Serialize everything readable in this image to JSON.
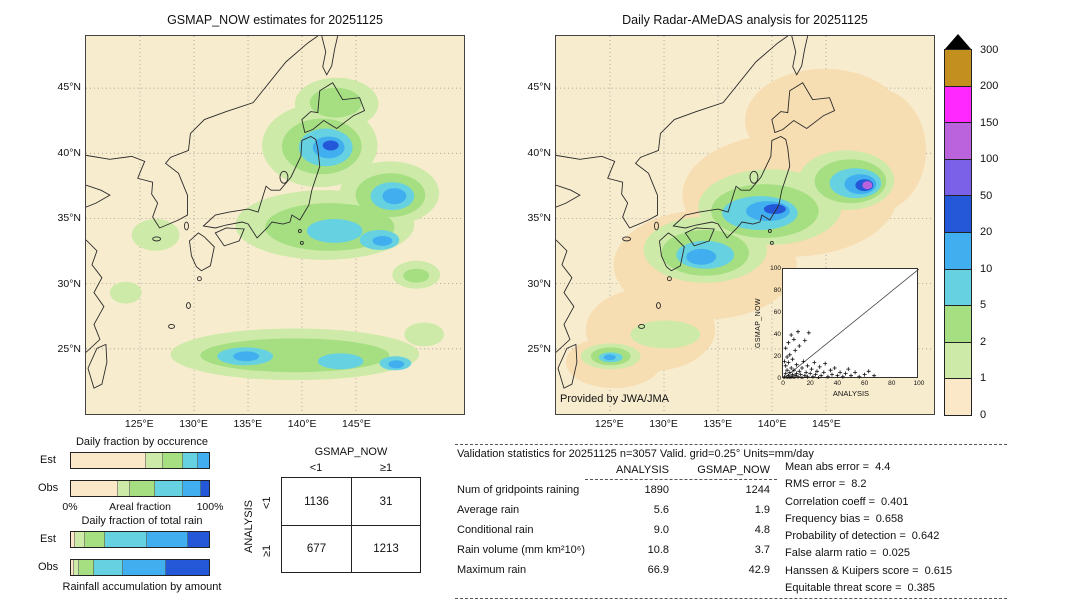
{
  "chart_data": [
    {
      "type": "map",
      "title": "GSMAP_NOW estimates for 20251125",
      "units": "mm/day",
      "lon_range": [
        120,
        155
      ],
      "lat_range": [
        20,
        49
      ],
      "x_ticks": [
        {
          "lon": 125,
          "label": "125°E"
        },
        {
          "lon": 130,
          "label": "130°E"
        },
        {
          "lon": 135,
          "label": "135°E"
        },
        {
          "lon": 140,
          "label": "140°E"
        },
        {
          "lon": 145,
          "label": "145°E"
        }
      ],
      "y_ticks": [
        {
          "lat": 25,
          "label": "25°N"
        },
        {
          "lat": 30,
          "label": "30°N"
        },
        {
          "lat": 35,
          "label": "35°N"
        },
        {
          "lat": 40,
          "label": "40°N"
        },
        {
          "lat": 45,
          "label": "45°N"
        }
      ]
    },
    {
      "type": "map",
      "title": "Daily Radar-AMeDAS analysis for 20251125",
      "credit": "Provided by JWA/JMA",
      "units": "mm/day",
      "lon_range": [
        120,
        155
      ],
      "lat_range": [
        20,
        49
      ],
      "x_ticks": [
        {
          "lon": 125,
          "label": "125°E"
        },
        {
          "lon": 130,
          "label": "130°E"
        },
        {
          "lon": 135,
          "label": "135°E"
        },
        {
          "lon": 140,
          "label": "140°E"
        },
        {
          "lon": 145,
          "label": "145°E"
        }
      ],
      "y_ticks": [
        {
          "lat": 25,
          "label": "25°N"
        },
        {
          "lat": 30,
          "label": "30°N"
        },
        {
          "lat": 35,
          "label": "35°N"
        },
        {
          "lat": 40,
          "label": "40°N"
        },
        {
          "lat": 45,
          "label": "45°N"
        }
      ],
      "inset_scatter": {
        "type": "scatter",
        "xlabel": "ANALYSIS",
        "ylabel": "GSMAP_NOW",
        "xlim": [
          0,
          100
        ],
        "ylim": [
          0,
          100
        ],
        "x_ticks": [
          0,
          20,
          40,
          60,
          80,
          100
        ],
        "y_ticks": [
          0,
          20,
          40,
          60,
          80,
          100
        ],
        "marker": "+",
        "points": [
          [
            1,
            2
          ],
          [
            2,
            5
          ],
          [
            2,
            12
          ],
          [
            3,
            1
          ],
          [
            3,
            8
          ],
          [
            4,
            15
          ],
          [
            4,
            3
          ],
          [
            5,
            1
          ],
          [
            5,
            6
          ],
          [
            5,
            22
          ],
          [
            6,
            10
          ],
          [
            6,
            2
          ],
          [
            7,
            18
          ],
          [
            7,
            4
          ],
          [
            8,
            1
          ],
          [
            8,
            8
          ],
          [
            9,
            26
          ],
          [
            9,
            3
          ],
          [
            10,
            5
          ],
          [
            10,
            13
          ],
          [
            11,
            2
          ],
          [
            12,
            7
          ],
          [
            12,
            30
          ],
          [
            13,
            4
          ],
          [
            14,
            10
          ],
          [
            14,
            1
          ],
          [
            15,
            16
          ],
          [
            16,
            3
          ],
          [
            16,
            35
          ],
          [
            17,
            6
          ],
          [
            18,
            2
          ],
          [
            18,
            12
          ],
          [
            19,
            42
          ],
          [
            20,
            5
          ],
          [
            21,
            9
          ],
          [
            22,
            2
          ],
          [
            23,
            15
          ],
          [
            24,
            4
          ],
          [
            25,
            7
          ],
          [
            26,
            1
          ],
          [
            27,
            11
          ],
          [
            28,
            3
          ],
          [
            30,
            6
          ],
          [
            31,
            14
          ],
          [
            33,
            2
          ],
          [
            35,
            8
          ],
          [
            36,
            4
          ],
          [
            38,
            10
          ],
          [
            40,
            3
          ],
          [
            42,
            6
          ],
          [
            44,
            2
          ],
          [
            46,
            5
          ],
          [
            48,
            9
          ],
          [
            50,
            3
          ],
          [
            53,
            6
          ],
          [
            56,
            2
          ],
          [
            60,
            4
          ],
          [
            63,
            7
          ],
          [
            67,
            3
          ],
          [
            2,
            28
          ],
          [
            4,
            33
          ],
          [
            6,
            40
          ],
          [
            3,
            20
          ],
          [
            8,
            36
          ],
          [
            11,
            43
          ],
          [
            1,
            16
          ]
        ]
      }
    },
    {
      "type": "colorbar",
      "units": "mm/day",
      "labels": [
        "300",
        "200",
        "150",
        "100",
        "50",
        "20",
        "10",
        "5",
        "2",
        "1",
        "0"
      ],
      "colors_top_to_bottom": [
        "#c3901f",
        "#ff28ff",
        "#bb63dd",
        "#7b61e8",
        "#2458d8",
        "#41aef0",
        "#66d1e0",
        "#a5df82",
        "#cdeaa8",
        "#fbe8c9"
      ],
      "over_max_marker": "black-triangle"
    },
    {
      "type": "bar",
      "stacked": true,
      "orientation": "horizontal",
      "title": "Daily fraction by occurence",
      "xlabel": "Areal fraction",
      "x_min_label": "0%",
      "x_max_label": "100%",
      "bars": [
        {
          "name": "Est",
          "segments": [
            {
              "value": 54,
              "color": "#fbe8c9"
            },
            {
              "value": 13,
              "color": "#cdeaa8"
            },
            {
              "value": 14,
              "color": "#a5df82"
            },
            {
              "value": 11,
              "color": "#66d1e0"
            },
            {
              "value": 8,
              "color": "#41aef0"
            }
          ]
        },
        {
          "name": "Obs",
          "segments": [
            {
              "value": 34,
              "color": "#fbe8c9"
            },
            {
              "value": 9,
              "color": "#cdeaa8"
            },
            {
              "value": 18,
              "color": "#a5df82"
            },
            {
              "value": 20,
              "color": "#66d1e0"
            },
            {
              "value": 13,
              "color": "#41aef0"
            },
            {
              "value": 6,
              "color": "#2458d8"
            }
          ]
        }
      ]
    },
    {
      "type": "bar",
      "stacked": true,
      "orientation": "horizontal",
      "title": "Daily fraction of total rain",
      "caption": "Rainfall accumulation by amount",
      "bars": [
        {
          "name": "Est",
          "segments": [
            {
              "value": 3,
              "color": "#fbe8c9"
            },
            {
              "value": 7,
              "color": "#cdeaa8"
            },
            {
              "value": 15,
              "color": "#a5df82"
            },
            {
              "value": 30,
              "color": "#66d1e0"
            },
            {
              "value": 30,
              "color": "#41aef0"
            },
            {
              "value": 15,
              "color": "#2458d8"
            }
          ]
        },
        {
          "name": "Obs",
          "segments": [
            {
              "value": 2,
              "color": "#fbe8c9"
            },
            {
              "value": 4,
              "color": "#cdeaa8"
            },
            {
              "value": 11,
              "color": "#a5df82"
            },
            {
              "value": 21,
              "color": "#66d1e0"
            },
            {
              "value": 31,
              "color": "#41aef0"
            },
            {
              "value": 31,
              "color": "#2458d8"
            }
          ]
        }
      ]
    },
    {
      "type": "table",
      "name": "contingency_table",
      "col_axis": "GSMAP_NOW",
      "row_axis": "ANALYSIS",
      "col_labels": [
        "<1",
        "≥1"
      ],
      "row_labels": [
        "<1",
        "≥1"
      ],
      "values": [
        [
          1136,
          31
        ],
        [
          677,
          1213
        ]
      ]
    },
    {
      "type": "table",
      "name": "validation_statistics",
      "header": "Validation statistics for 20251125  n=3057 Valid. grid=0.25° Units=mm/day",
      "columns": [
        "ANALYSIS",
        "GSMAP_NOW"
      ],
      "rows": [
        {
          "label": "Num of gridpoints raining",
          "analysis": "1890",
          "gsmap_now": "1244"
        },
        {
          "label": "Average rain",
          "analysis": "5.6",
          "gsmap_now": "1.9"
        },
        {
          "label": "Conditional rain",
          "analysis": "9.0",
          "gsmap_now": "4.8"
        },
        {
          "label": "Rain volume (mm km²10⁶)",
          "analysis": "10.8",
          "gsmap_now": "3.7"
        },
        {
          "label": "Maximum rain",
          "analysis": "66.9",
          "gsmap_now": "42.9"
        }
      ],
      "scores": [
        {
          "label": "Mean abs error =",
          "value": "4.4"
        },
        {
          "label": "RMS error =",
          "value": "8.2"
        },
        {
          "label": "Correlation coeff =",
          "value": "0.401"
        },
        {
          "label": "Frequency bias =",
          "value": "0.658"
        },
        {
          "label": "Probability of detection =",
          "value": "0.642"
        },
        {
          "label": "False alarm ratio =",
          "value": "0.025"
        },
        {
          "label": "Hanssen & Kuipers score =",
          "value": "0.615"
        },
        {
          "label": "Equitable threat score =",
          "value": "0.385"
        }
      ]
    }
  ]
}
